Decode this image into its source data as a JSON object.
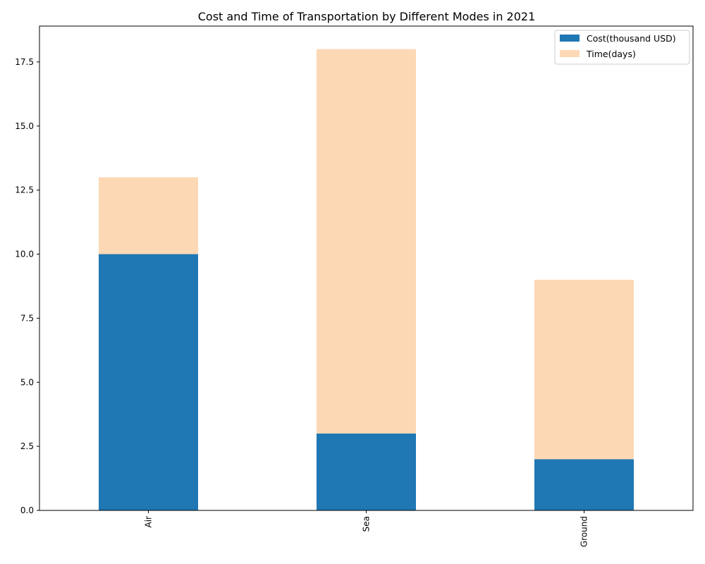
{
  "chart_data": {
    "type": "bar",
    "stacked": true,
    "title": "Cost and Time of Transportation by Different Modes in 2021",
    "xlabel": "",
    "ylabel": "",
    "categories": [
      "Air",
      "Sea",
      "Ground"
    ],
    "series": [
      {
        "name": "Cost(thousand USD)",
        "values": [
          10,
          3,
          2
        ],
        "color": "#1f77b4"
      },
      {
        "name": "Time(days)",
        "values": [
          3,
          15,
          7
        ],
        "color": "#fdd8b5"
      }
    ],
    "ylim": [
      0,
      18.9
    ],
    "yticks": [
      0.0,
      2.5,
      5.0,
      7.5,
      10.0,
      12.5,
      15.0,
      17.5
    ],
    "ytick_labels": [
      "0.0",
      "2.5",
      "5.0",
      "7.5",
      "10.0",
      "12.5",
      "15.0",
      "17.5"
    ],
    "legend_position": "top-right",
    "grid": false
  }
}
